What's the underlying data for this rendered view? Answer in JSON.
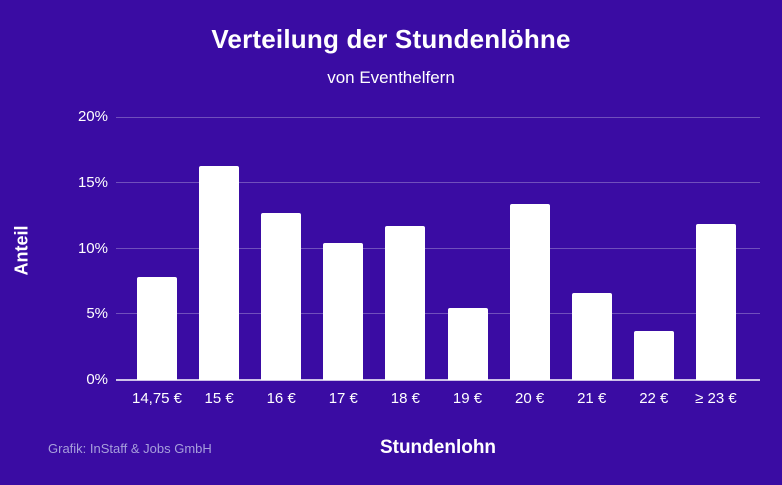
{
  "colors": {
    "background": "#3A0CA3",
    "bar": "#FFFFFF",
    "text": "#FFFFFF",
    "muted_text": "#A79FDC",
    "gridline": "rgba(255,255,255,0.28)",
    "axisline": "rgba(255,255,255,0.75)"
  },
  "header": {
    "title": "Verteilung der Stundenlöhne",
    "subtitle": "von Eventhelfern"
  },
  "footer": {
    "credit": "Grafik: InStaff & Jobs GmbH"
  },
  "chart_data": {
    "type": "bar",
    "title": "Verteilung der Stundenlöhne",
    "subtitle": "von Eventhelfern",
    "categories": [
      "14,75 €",
      "15 €",
      "16 €",
      "17 €",
      "18 €",
      "19 €",
      "20 €",
      "21 €",
      "22 €",
      "≥ 23 €"
    ],
    "values": [
      7.8,
      16.3,
      12.7,
      10.4,
      11.7,
      5.5,
      13.4,
      6.6,
      3.7,
      11.9
    ],
    "unit": "%",
    "xlabel": "Stundenlohn",
    "ylabel": "Anteil",
    "ylim": [
      0,
      20
    ],
    "yticks": [
      0,
      5,
      10,
      15,
      20
    ],
    "ytick_labels": [
      "0%",
      "5%",
      "10%",
      "15%",
      "20%"
    ],
    "grid": true,
    "legend": false,
    "bar_color": "#FFFFFF"
  }
}
